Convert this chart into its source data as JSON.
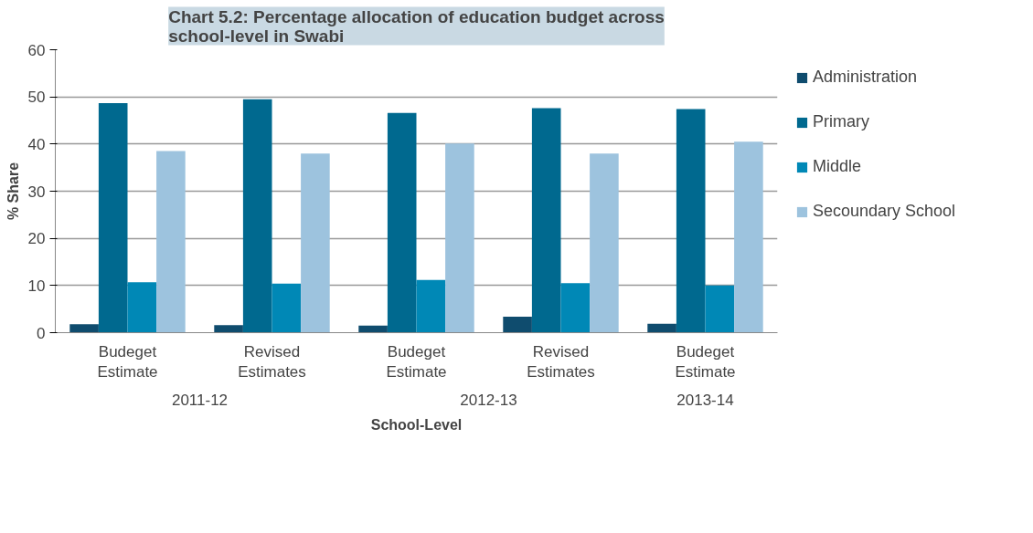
{
  "chart_data": {
    "type": "bar",
    "title": "Chart 5.2: Percentage allocation of education budget across school-level in Swabi",
    "xlabel": "School-Level",
    "ylabel": "% Share",
    "categories": [
      "Budeget Estimate",
      "Revised Estimates",
      "Budeget Estimate",
      "Revised Estimates",
      "Budeget Estimate"
    ],
    "annotations": [
      "2011-12",
      "2012-13",
      "2013-14"
    ],
    "series": [
      {
        "name": "Administration",
        "color": "#0f4c6e",
        "values": [
          1.8,
          1.6,
          1.5,
          3.4,
          1.9
        ]
      },
      {
        "name": "Primary",
        "color": "#00698f",
        "values": [
          48.7,
          49.5,
          46.6,
          47.6,
          47.4
        ]
      },
      {
        "name": "Middle",
        "color": "#0088b6",
        "values": [
          10.7,
          10.4,
          11.2,
          10.5,
          10.0
        ]
      },
      {
        "name": "Secoundary School",
        "color": "#9dc3de",
        "values": [
          38.5,
          38.0,
          40.1,
          38.0,
          40.5
        ]
      }
    ],
    "ylim": [
      0,
      60
    ],
    "yticks": [
      0,
      10,
      20,
      30,
      40,
      50,
      60
    ],
    "grid": "y",
    "legend": "right"
  }
}
